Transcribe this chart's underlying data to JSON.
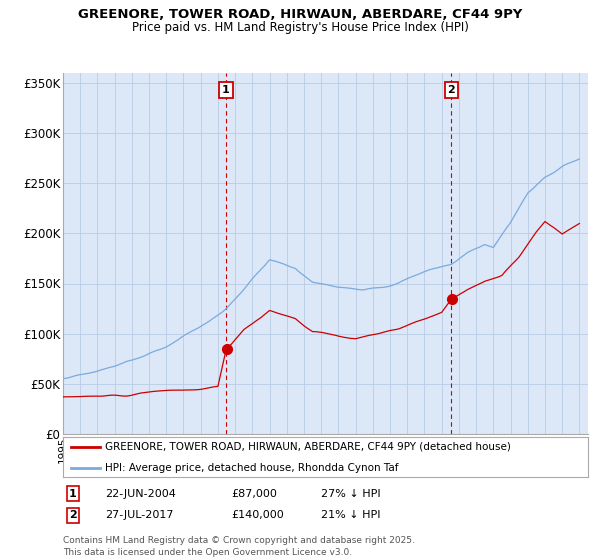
{
  "title": "GREENORE, TOWER ROAD, HIRWAUN, ABERDARE, CF44 9PY",
  "subtitle": "Price paid vs. HM Land Registry's House Price Index (HPI)",
  "ylabel_ticks": [
    "£0",
    "£50K",
    "£100K",
    "£150K",
    "£200K",
    "£250K",
    "£300K",
    "£350K"
  ],
  "ytick_values": [
    0,
    50000,
    100000,
    150000,
    200000,
    250000,
    300000,
    350000
  ],
  "ylim": [
    0,
    360000
  ],
  "xlim_start": 1995.0,
  "xlim_end": 2025.5,
  "purchase1": {
    "date": "22-JUN-2004",
    "price": 87000,
    "label": "1",
    "year": 2004.47,
    "pct": "27% ↓ HPI"
  },
  "purchase2": {
    "date": "27-JUL-2017",
    "price": 140000,
    "label": "2",
    "year": 2017.56,
    "pct": "21% ↓ HPI"
  },
  "legend_line1": "GREENORE, TOWER ROAD, HIRWAUN, ABERDARE, CF44 9PY (detached house)",
  "legend_line2": "HPI: Average price, detached house, Rhondda Cynon Taf",
  "footnote": "Contains HM Land Registry data © Crown copyright and database right 2025.\nThis data is licensed under the Open Government Licence v3.0.",
  "red_color": "#cc0000",
  "blue_color": "#7aaadd",
  "bg_color": "#dce8f8",
  "plot_bg": "#ffffff",
  "grid_color": "#b8cce4",
  "vline_color": "#cc0000"
}
